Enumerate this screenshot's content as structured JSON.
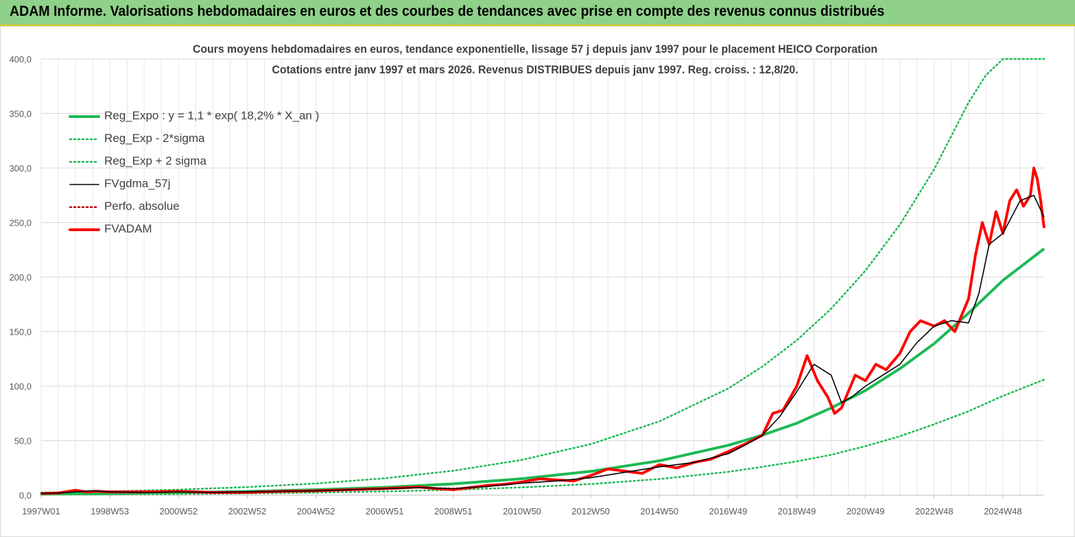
{
  "header": {
    "title": "ADAM Informe. Valorisations hebdomadaires en euros et des courbes de tendances avec prise en compte des revenus connus distribués"
  },
  "chart_data": {
    "type": "line",
    "title_line1": "Cours moyens hebdomadaires en euros, tendance exponentielle, lissage 57 j depuis janv 1997 pour le placement HEICO Corporation",
    "title_line2": "Cotations entre janv 1997 et mars 2026. Revenus DISTRIBUES depuis janv 1997. Reg. croiss. : 12,8/20.",
    "ylim": [
      0,
      400
    ],
    "y_ticks": [
      "0,0",
      "50,0",
      "100,0",
      "150,0",
      "200,0",
      "250,0",
      "300,0",
      "350,0",
      "400,0"
    ],
    "x_range": [
      1997.0,
      2026.2
    ],
    "x_ticks": [
      {
        "label": "1997W01",
        "x": 1997.0
      },
      {
        "label": "1998W53",
        "x": 1999.0
      },
      {
        "label": "2000W52",
        "x": 2001.0
      },
      {
        "label": "2002W52",
        "x": 2003.0
      },
      {
        "label": "2004W52",
        "x": 2005.0
      },
      {
        "label": "2006W51",
        "x": 2007.0
      },
      {
        "label": "2008W51",
        "x": 2009.0
      },
      {
        "label": "2010W50",
        "x": 2011.0
      },
      {
        "label": "2012W50",
        "x": 2013.0
      },
      {
        "label": "2014W50",
        "x": 2015.0
      },
      {
        "label": "2016W49",
        "x": 2017.0
      },
      {
        "label": "2018W49",
        "x": 2019.0
      },
      {
        "label": "2020W49",
        "x": 2021.0
      },
      {
        "label": "2022W48",
        "x": 2023.0
      },
      {
        "label": "2024W48",
        "x": 2025.0
      }
    ],
    "grid": "vertical-and-horizontal",
    "legend_placement": "top-left",
    "series": [
      {
        "name": "Reg_Expo : y = 1,1 * exp( 18,2% *  X_an )",
        "color": "#1db954",
        "style": "solid-thick",
        "x": [
          1997,
          1999,
          2001,
          2003,
          2005,
          2007,
          2009,
          2011,
          2013,
          2015,
          2017,
          2018,
          2019,
          2020,
          2021,
          2022,
          2023,
          2024,
          2025,
          2026.2
        ],
        "y": [
          1.1,
          1.6,
          2.4,
          3.4,
          5.0,
          7.2,
          10.4,
          15.1,
          21.8,
          31.5,
          45.7,
          55,
          66,
          80,
          96,
          116,
          139,
          167,
          197,
          226
        ]
      },
      {
        "name": "Reg_Exp - 2*sigma",
        "color": "#1db954",
        "style": "dotted",
        "x": [
          1997,
          1999,
          2001,
          2003,
          2005,
          2007,
          2009,
          2011,
          2013,
          2015,
          2017,
          2018,
          2019,
          2020,
          2021,
          2022,
          2023,
          2024,
          2025,
          2026.2
        ],
        "y": [
          0.5,
          0.7,
          1.1,
          1.6,
          2.3,
          3.4,
          4.9,
          7.1,
          10.2,
          14.8,
          21.4,
          26,
          31,
          37,
          45,
          54,
          65,
          77,
          91,
          106
        ]
      },
      {
        "name": "Reg_Exp + 2 sigma",
        "color": "#1db954",
        "style": "dotted",
        "x": [
          1997,
          1999,
          2001,
          2003,
          2005,
          2007,
          2009,
          2011,
          2013,
          2015,
          2017,
          2018,
          2019,
          2020,
          2021,
          2022,
          2023,
          2024,
          2024.5,
          2025.0,
          2025.3,
          2026.2
        ],
        "y": [
          2.4,
          3.5,
          5.1,
          7.4,
          10.7,
          15.5,
          22.4,
          32.4,
          46.8,
          67.7,
          97.8,
          118,
          142,
          171,
          206,
          248,
          299,
          360,
          385,
          400,
          400,
          400
        ]
      },
      {
        "name": "FVgdma_57j",
        "color": "#000000",
        "style": "solid-thin",
        "x": [
          1997,
          1997.5,
          1998.0,
          1998.5,
          1999,
          2000,
          2001,
          2002,
          2003,
          2004,
          2005,
          2006,
          2007,
          2008,
          2009,
          2010,
          2011,
          2012,
          2013,
          2014,
          2015,
          2016,
          2017,
          2017.5,
          2018,
          2018.5,
          2019,
          2019.5,
          2020,
          2020.3,
          2020.6,
          2021,
          2021.5,
          2022,
          2022.5,
          2023,
          2023.5,
          2024,
          2024.3,
          2024.6,
          2025,
          2025.5,
          2025.9,
          2026.2
        ],
        "y": [
          1.5,
          2,
          3,
          4,
          3,
          2.5,
          3,
          2.5,
          3,
          3.5,
          4,
          5,
          6,
          7,
          6,
          8,
          11,
          13,
          16,
          21,
          26,
          30,
          38,
          46,
          55,
          72,
          95,
          120,
          110,
          85,
          90,
          100,
          110,
          120,
          140,
          155,
          160,
          158,
          185,
          230,
          240,
          270,
          275,
          255
        ]
      },
      {
        "name": "Perfo. absolue",
        "color": "#c00000",
        "style": "dotted",
        "x": [
          1997,
          1998,
          1999,
          2000,
          2001,
          2002,
          2003,
          2004,
          2005,
          2006,
          2007,
          2008,
          2009,
          2010
        ],
        "y": [
          1.5,
          3,
          3,
          2.5,
          3,
          2.5,
          3,
          3.5,
          4,
          5,
          6,
          7,
          6,
          8
        ]
      },
      {
        "name": "FVADAM",
        "color": "#ff0000",
        "style": "solid-thick",
        "x": [
          1997,
          1997.5,
          1998.0,
          1998.3,
          1998.6,
          1999,
          2000,
          2001,
          2002,
          2003,
          2004,
          2005,
          2006,
          2007,
          2008,
          2008.5,
          2009,
          2009.5,
          2010,
          2010.5,
          2011,
          2011.5,
          2012,
          2012.5,
          2013,
          2013.5,
          2014,
          2014.5,
          2015,
          2015.5,
          2016,
          2016.5,
          2017,
          2017.5,
          2018,
          2018.3,
          2018.6,
          2019,
          2019.3,
          2019.6,
          2019.9,
          2020.1,
          2020.3,
          2020.5,
          2020.7,
          2021,
          2021.3,
          2021.6,
          2022,
          2022.3,
          2022.6,
          2023,
          2023.3,
          2023.6,
          2024,
          2024.2,
          2024.4,
          2024.6,
          2024.8,
          2025,
          2025.2,
          2025.4,
          2025.6,
          2025.8,
          2025.9,
          2026.0,
          2026.1,
          2026.2
        ],
        "y": [
          1.5,
          2,
          4.5,
          3,
          3.5,
          3,
          3,
          3.5,
          2.5,
          2.5,
          3.5,
          4,
          5,
          6,
          7.5,
          6,
          5,
          7,
          9,
          10,
          12,
          15,
          14,
          13,
          18,
          24,
          22,
          20,
          28,
          25,
          30,
          33,
          40,
          47,
          55,
          75,
          78,
          100,
          128,
          105,
          90,
          75,
          80,
          95,
          110,
          105,
          120,
          115,
          130,
          150,
          160,
          155,
          160,
          150,
          180,
          220,
          250,
          230,
          260,
          240,
          270,
          280,
          265,
          275,
          300,
          290,
          270,
          245
        ]
      }
    ]
  }
}
